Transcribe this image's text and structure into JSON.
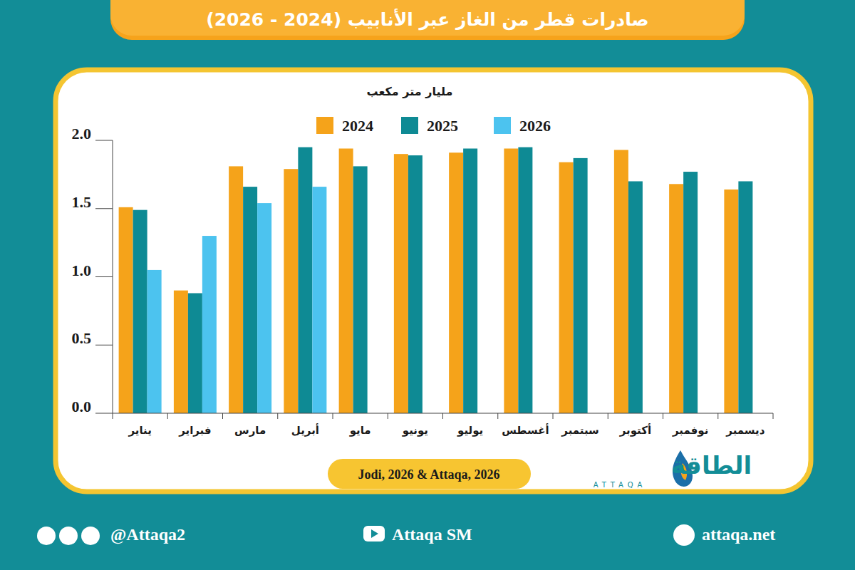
{
  "chart_data": {
    "type": "bar",
    "title": "صادرات قطر من الغاز عبر الأنابيب (2024 - 2026)",
    "y_label": "مليار متر مكعب",
    "categories": [
      "يناير",
      "فبراير",
      "مارس",
      "أبريل",
      "مايو",
      "يونيو",
      "يوليو",
      "أغسطس",
      "سبتمبر",
      "أكتوبر",
      "نوفمبر",
      "ديسمبر"
    ],
    "series": [
      {
        "name": "2024",
        "color": "#f5a31a",
        "values": [
          1.51,
          0.9,
          1.81,
          1.79,
          1.94,
          1.9,
          1.91,
          1.94,
          1.84,
          1.93,
          1.68,
          1.64
        ]
      },
      {
        "name": "2025",
        "color": "#0e8a94",
        "values": [
          1.49,
          0.88,
          1.66,
          1.95,
          1.81,
          1.89,
          1.94,
          1.95,
          1.87,
          1.7,
          1.77,
          1.7
        ]
      },
      {
        "name": "2026",
        "color": "#4cc3ef",
        "values": [
          1.05,
          1.3,
          1.54,
          1.66,
          null,
          null,
          null,
          null,
          null,
          null,
          null,
          null
        ]
      }
    ],
    "ylim": [
      0,
      2
    ],
    "yticks": [
      {
        "value": 0,
        "label": "0.0"
      },
      0.5,
      {
        "value": 1,
        "label": "1.0"
      },
      1.5,
      {
        "value": 2,
        "label": "2.0"
      }
    ],
    "grid": false,
    "legend": "top",
    "source": "Jodi, 2026 & Attaqa, 2026",
    "logo_text": "الطاقة",
    "logo_subtext": "ATTAQA",
    "footer": [
      "@Attaqa2",
      "Attaqa SM",
      "attaqa.net"
    ]
  }
}
